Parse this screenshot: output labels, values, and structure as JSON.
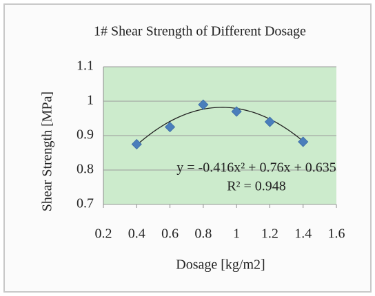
{
  "chart_data": {
    "type": "scatter",
    "title": "1# Shear Strength of Different Dosage",
    "x_label": "Dosage [kg/m2]",
    "y_label": "Shear Strength [MPa]",
    "x": [
      0.4,
      0.6,
      0.8,
      1.0,
      1.2,
      1.4
    ],
    "values": [
      0.875,
      0.925,
      0.99,
      0.97,
      0.94,
      0.882
    ],
    "color": "#4a7ebb",
    "plot_background": "#ccebcc",
    "xlim": [
      0.2,
      1.6
    ],
    "xticks": [
      0.2,
      0.4,
      0.6,
      0.8,
      1,
      1.2,
      1.4,
      1.6
    ],
    "ylim": [
      0.7,
      1.1
    ],
    "yticks": [
      0.7,
      0.8,
      0.9,
      1,
      1.1
    ],
    "grid": true,
    "trendline": {
      "coefficients": [
        -0.416,
        0.76,
        0.635
      ],
      "equation": "y = -0.416x² + 0.76x + 0.635",
      "r_squared_label": "R² = 0.948"
    }
  }
}
